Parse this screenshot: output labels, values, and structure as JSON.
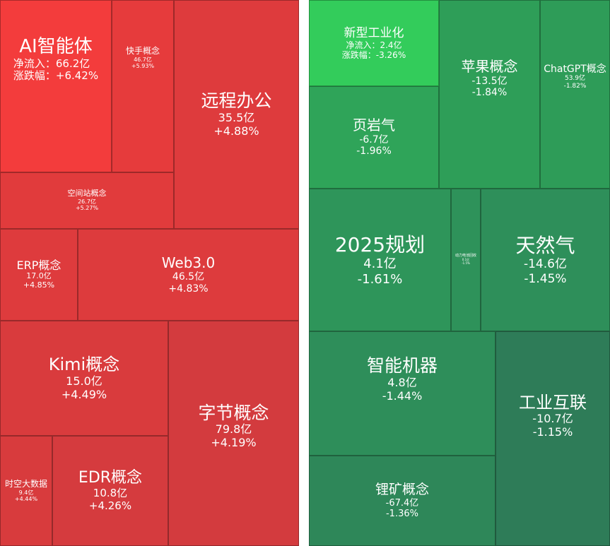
{
  "chart_data": {
    "type": "treemap",
    "panels": [
      {
        "name": "",
        "tiles": [
          {
            "id": "ai-agent",
            "name": "AI智能体",
            "flow": "净流入：66.2亿",
            "change": "涨跌幅：+6.42%",
            "color": "#f33c3c",
            "nameSize": 26,
            "subSize": 15,
            "align": "left"
          },
          {
            "id": "kuaishou",
            "name": "快手概念",
            "flow": "46.7亿",
            "change": "+5.93%",
            "color": "#e63b3c",
            "nameSize": 12,
            "subSize": 8
          },
          {
            "id": "remote-office",
            "name": "远程办公",
            "flow": "35.5亿",
            "change": "+4.88%",
            "color": "#de3b3d",
            "nameSize": 25,
            "subSize": 16
          },
          {
            "id": "space-station",
            "name": "空间站概念",
            "flow": "26.7亿",
            "change": "+5.27%",
            "color": "#e13b3c",
            "nameSize": 11,
            "subSize": 8
          },
          {
            "id": "erp",
            "name": "ERP概念",
            "flow": "17.0亿",
            "change": "+4.85%",
            "color": "#de3b3d",
            "nameSize": 16,
            "subSize": 11
          },
          {
            "id": "web3",
            "name": "Web3.0",
            "flow": "46.5亿",
            "change": "+4.83%",
            "color": "#dd3b3d",
            "nameSize": 20,
            "subSize": 14
          },
          {
            "id": "kimi",
            "name": "Kimi概念",
            "flow": "15.0亿",
            "change": "+4.49%",
            "color": "#d93b3d",
            "nameSize": 24,
            "subSize": 16
          },
          {
            "id": "bytedance",
            "name": "字节概念",
            "flow": "79.8亿",
            "change": "+4.19%",
            "color": "#d33b3e",
            "nameSize": 25,
            "subSize": 16
          },
          {
            "id": "spatiotemporal",
            "name": "时空大数据",
            "flow": "9.4亿",
            "change": "+4.44%",
            "color": "#d83b3d",
            "nameSize": 12,
            "subSize": 8
          },
          {
            "id": "edr",
            "name": "EDR概念",
            "flow": "10.8亿",
            "change": "+4.26%",
            "color": "#d53b3e",
            "nameSize": 22,
            "subSize": 15
          }
        ]
      },
      {
        "name": "",
        "tiles": [
          {
            "id": "new-industrialization",
            "name": "新型工业化",
            "flow": "净流入：2.4亿",
            "change": "涨跌幅：-3.26%",
            "color": "#33cc5b",
            "nameSize": 17,
            "subSize": 12
          },
          {
            "id": "apple",
            "name": "苹果概念",
            "flow": "-13.5亿",
            "change": "-1.84%",
            "color": "#2e9e58",
            "nameSize": 20,
            "subSize": 14
          },
          {
            "id": "chatgpt",
            "name": "ChatGPT概念",
            "flow": "53.9亿",
            "change": "-1.82%",
            "color": "#2e9c58",
            "nameSize": 14,
            "subSize": 9
          },
          {
            "id": "shale-gas",
            "name": "页岩气",
            "flow": "-6.7亿",
            "change": "-1.96%",
            "color": "#2fa459",
            "nameSize": 20,
            "subSize": 14
          },
          {
            "id": "plan-2025",
            "name": "2025规划",
            "flow": "4.1亿",
            "change": "-1.61%",
            "color": "#2e955a",
            "nameSize": 28,
            "subSize": 18
          },
          {
            "id": "power-battery-recycle",
            "name": "动力电池回收",
            "flow": "0.1亿",
            "change": "-1.5%",
            "color": "#2e925a",
            "nameSize": 5,
            "subSize": 4
          },
          {
            "id": "natural-gas",
            "name": "天然气",
            "flow": "-14.6亿",
            "change": "-1.45%",
            "color": "#2e8f5a",
            "nameSize": 28,
            "subSize": 17
          },
          {
            "id": "smart-machine",
            "name": "智能机器",
            "flow": "4.8亿",
            "change": "-1.44%",
            "color": "#2e8e5a",
            "nameSize": 25,
            "subSize": 16
          },
          {
            "id": "industrial-internet",
            "name": "工业互联",
            "flow": "-10.7亿",
            "change": "-1.15%",
            "color": "#2e7c58",
            "nameSize": 24,
            "subSize": 16
          },
          {
            "id": "lithium-mine",
            "name": "锂矿概念",
            "flow": "-67.4亿",
            "change": "-1.36%",
            "color": "#2e8759",
            "nameSize": 19,
            "subSize": 13
          }
        ]
      }
    ]
  }
}
